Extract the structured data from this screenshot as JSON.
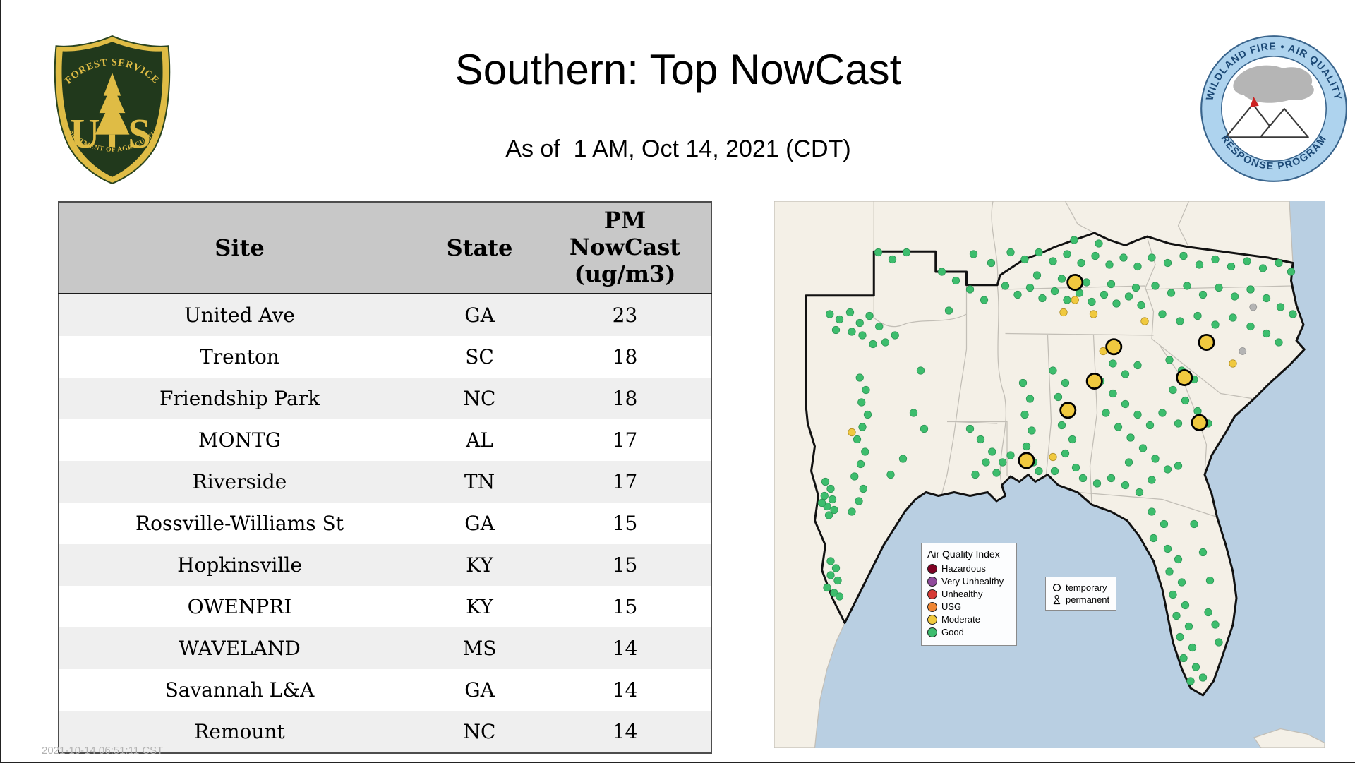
{
  "page": {
    "title": "Southern: Top NowCast",
    "subtitle": "As of  1 AM, Oct 14, 2021 (CDT)",
    "footer_timestamp": "2021-10-14 06:51:11 CST"
  },
  "logos": {
    "forest_service": {
      "top_text": "FOREST SERVICE",
      "letter_u": "U",
      "letter_s": "S",
      "bottom_text": "DEPARTMENT OF AGRICULTURE"
    },
    "airfire": {
      "top_text": "WILDLAND FIRE • AIR QUALITY",
      "bottom_text": "RESPONSE PROGRAM"
    }
  },
  "table": {
    "headers": {
      "site": "Site",
      "state": "State",
      "pm": [
        "PM",
        "NowCast",
        "(ug/m3)"
      ]
    },
    "rows": [
      [
        "United Ave",
        "GA",
        "23"
      ],
      [
        "Trenton",
        "SC",
        "18"
      ],
      [
        "Friendship Park",
        "NC",
        "18"
      ],
      [
        "MONTG",
        "AL",
        "17"
      ],
      [
        "Riverside",
        "TN",
        "17"
      ],
      [
        "Rossville-Williams St",
        "GA",
        "15"
      ],
      [
        "Hopkinsville",
        "KY",
        "15"
      ],
      [
        "OWENPRI",
        "KY",
        "15"
      ],
      [
        "WAVELAND",
        "MS",
        "14"
      ],
      [
        "Savannah L&A",
        "GA",
        "14"
      ],
      [
        "Remount",
        "NC",
        "14"
      ]
    ]
  },
  "map": {
    "legend": {
      "title": "Air Quality Index",
      "items": [
        {
          "label": "Hazardous",
          "color": "#7e0023"
        },
        {
          "label": "Very Unhealthy",
          "color": "#8f4a9b"
        },
        {
          "label": "Unhealthy",
          "color": "#d63a35"
        },
        {
          "label": "USG",
          "color": "#ef8533"
        },
        {
          "label": "Moderate",
          "color": "#f0c93f"
        },
        {
          "label": "Good",
          "color": "#3dbd6d"
        }
      ]
    },
    "marker_legend": {
      "temporary_label": "temporary",
      "permanent_label": "permanent"
    },
    "colors": {
      "good": "#3dbd6d",
      "good_edge": "#2a9152",
      "moderate": "#f0c93f",
      "moderate_edge": "#a8861d",
      "gray": "#b4b4b4",
      "ring": "#000000"
    },
    "markers": {
      "good": [
        [
          63,
          128
        ],
        [
          74,
          134
        ],
        [
          86,
          126
        ],
        [
          97,
          138
        ],
        [
          108,
          130
        ],
        [
          119,
          142
        ],
        [
          88,
          148
        ],
        [
          100,
          152
        ],
        [
          70,
          146
        ],
        [
          126,
          160
        ],
        [
          137,
          152
        ],
        [
          112,
          162
        ],
        [
          97,
          200
        ],
        [
          104,
          214
        ],
        [
          99,
          228
        ],
        [
          106,
          242
        ],
        [
          100,
          256
        ],
        [
          94,
          270
        ],
        [
          103,
          284
        ],
        [
          98,
          298
        ],
        [
          91,
          312
        ],
        [
          101,
          326
        ],
        [
          96,
          340
        ],
        [
          88,
          352
        ],
        [
          166,
          192
        ],
        [
          158,
          240
        ],
        [
          170,
          258
        ],
        [
          146,
          292
        ],
        [
          132,
          310
        ],
        [
          58,
          318
        ],
        [
          64,
          326
        ],
        [
          57,
          334
        ],
        [
          66,
          338
        ],
        [
          60,
          346
        ],
        [
          68,
          350
        ],
        [
          54,
          342
        ],
        [
          62,
          356
        ],
        [
          64,
          408
        ],
        [
          70,
          416
        ],
        [
          64,
          424
        ],
        [
          72,
          430
        ],
        [
          60,
          438
        ],
        [
          68,
          444
        ],
        [
          74,
          448
        ],
        [
          118,
          58
        ],
        [
          134,
          66
        ],
        [
          150,
          58
        ],
        [
          190,
          80
        ],
        [
          206,
          90
        ],
        [
          222,
          100
        ],
        [
          238,
          112
        ],
        [
          198,
          124
        ],
        [
          226,
          60
        ],
        [
          246,
          70
        ],
        [
          222,
          258
        ],
        [
          234,
          270
        ],
        [
          247,
          284
        ],
        [
          259,
          296
        ],
        [
          268,
          288
        ],
        [
          252,
          308
        ],
        [
          240,
          296
        ],
        [
          228,
          310
        ],
        [
          282,
          206
        ],
        [
          290,
          224
        ],
        [
          284,
          242
        ],
        [
          292,
          260
        ],
        [
          286,
          278
        ],
        [
          294,
          296
        ],
        [
          300,
          306
        ],
        [
          262,
          96
        ],
        [
          276,
          106
        ],
        [
          290,
          98
        ],
        [
          304,
          110
        ],
        [
          318,
          102
        ],
        [
          332,
          112
        ],
        [
          346,
          104
        ],
        [
          360,
          114
        ],
        [
          374,
          106
        ],
        [
          388,
          116
        ],
        [
          402,
          108
        ],
        [
          416,
          118
        ],
        [
          298,
          84
        ],
        [
          326,
          88
        ],
        [
          354,
          92
        ],
        [
          382,
          94
        ],
        [
          410,
          98
        ],
        [
          268,
          58
        ],
        [
          284,
          66
        ],
        [
          300,
          58
        ],
        [
          316,
          68
        ],
        [
          332,
          60
        ],
        [
          348,
          70
        ],
        [
          364,
          62
        ],
        [
          380,
          72
        ],
        [
          396,
          64
        ],
        [
          412,
          74
        ],
        [
          340,
          44
        ],
        [
          368,
          48
        ],
        [
          428,
          64
        ],
        [
          446,
          70
        ],
        [
          464,
          62
        ],
        [
          482,
          72
        ],
        [
          500,
          66
        ],
        [
          518,
          74
        ],
        [
          536,
          68
        ],
        [
          554,
          76
        ],
        [
          572,
          70
        ],
        [
          586,
          80
        ],
        [
          432,
          96
        ],
        [
          450,
          104
        ],
        [
          468,
          96
        ],
        [
          486,
          106
        ],
        [
          504,
          98
        ],
        [
          522,
          108
        ],
        [
          540,
          100
        ],
        [
          558,
          110
        ],
        [
          574,
          120
        ],
        [
          588,
          128
        ],
        [
          440,
          128
        ],
        [
          460,
          136
        ],
        [
          480,
          130
        ],
        [
          500,
          140
        ],
        [
          520,
          132
        ],
        [
          540,
          142
        ],
        [
          558,
          150
        ],
        [
          572,
          160
        ],
        [
          448,
          180
        ],
        [
          462,
          192
        ],
        [
          476,
          202
        ],
        [
          452,
          214
        ],
        [
          466,
          226
        ],
        [
          480,
          238
        ],
        [
          440,
          240
        ],
        [
          492,
          252
        ],
        [
          458,
          252
        ],
        [
          384,
          184
        ],
        [
          398,
          196
        ],
        [
          412,
          186
        ],
        [
          370,
          204
        ],
        [
          384,
          218
        ],
        [
          398,
          230
        ],
        [
          412,
          242
        ],
        [
          426,
          254
        ],
        [
          376,
          240
        ],
        [
          390,
          256
        ],
        [
          404,
          268
        ],
        [
          418,
          280
        ],
        [
          432,
          292
        ],
        [
          446,
          304
        ],
        [
          402,
          296
        ],
        [
          428,
          316
        ],
        [
          458,
          300
        ],
        [
          316,
          192
        ],
        [
          330,
          206
        ],
        [
          322,
          222
        ],
        [
          334,
          238
        ],
        [
          326,
          254
        ],
        [
          338,
          270
        ],
        [
          330,
          286
        ],
        [
          342,
          302
        ],
        [
          318,
          306
        ],
        [
          350,
          314
        ],
        [
          366,
          320
        ],
        [
          382,
          314
        ],
        [
          398,
          322
        ],
        [
          414,
          330
        ],
        [
          428,
          352
        ],
        [
          442,
          366
        ],
        [
          430,
          382
        ],
        [
          446,
          394
        ],
        [
          458,
          406
        ],
        [
          448,
          420
        ],
        [
          462,
          432
        ],
        [
          452,
          446
        ],
        [
          466,
          458
        ],
        [
          456,
          470
        ],
        [
          470,
          482
        ],
        [
          460,
          494
        ],
        [
          474,
          506
        ],
        [
          464,
          518
        ],
        [
          478,
          528
        ],
        [
          486,
          540
        ],
        [
          472,
          544
        ],
        [
          492,
          466
        ],
        [
          500,
          480
        ],
        [
          494,
          430
        ],
        [
          486,
          398
        ],
        [
          476,
          366
        ],
        [
          504,
          500
        ]
      ],
      "moderate_small": [
        [
          341,
          112
        ],
        [
          328,
          126
        ],
        [
          420,
          136
        ],
        [
          520,
          184
        ],
        [
          316,
          290
        ],
        [
          88,
          262
        ],
        [
          362,
          128
        ],
        [
          373,
          170
        ]
      ],
      "moderate_large": [
        [
          341,
          92
        ],
        [
          385,
          165
        ],
        [
          490,
          160
        ],
        [
          363,
          204
        ],
        [
          465,
          200
        ],
        [
          333,
          237
        ],
        [
          482,
          251
        ],
        [
          286,
          294
        ]
      ],
      "gray": [
        [
          531,
          170
        ],
        [
          543,
          120
        ]
      ]
    }
  }
}
